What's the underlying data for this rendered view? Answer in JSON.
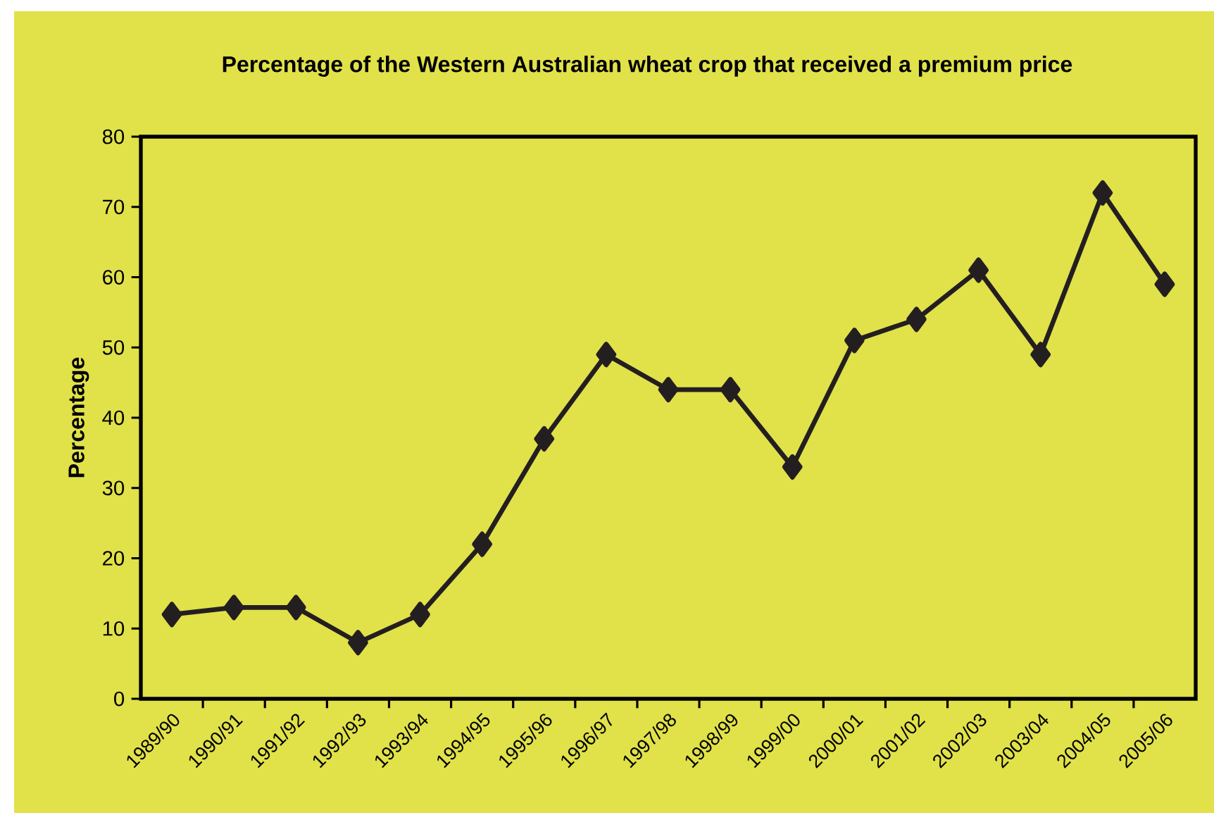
{
  "chart_data": {
    "type": "line",
    "title": "Percentage of the Western Australian wheat crop that received a premium price",
    "ylabel": "Percentage",
    "categories": [
      "1989/90",
      "1990/91",
      "1991/92",
      "1992/93",
      "1993/94",
      "1994/95",
      "1995/96",
      "1996/97",
      "1997/98",
      "1998/99",
      "1999/00",
      "2000/01",
      "2001/02",
      "2002/03",
      "2003/04",
      "2004/05",
      "2005/06"
    ],
    "values": [
      12,
      13,
      13,
      8,
      12,
      22,
      37,
      49,
      44,
      44,
      33,
      51,
      54,
      61,
      49,
      72,
      59
    ],
    "color": "#231f20",
    "marker": "diamond",
    "line_style": "solid",
    "ylim": [
      0,
      80
    ],
    "yticks": [
      0,
      10,
      20,
      30,
      40,
      50,
      60,
      70,
      80
    ]
  }
}
